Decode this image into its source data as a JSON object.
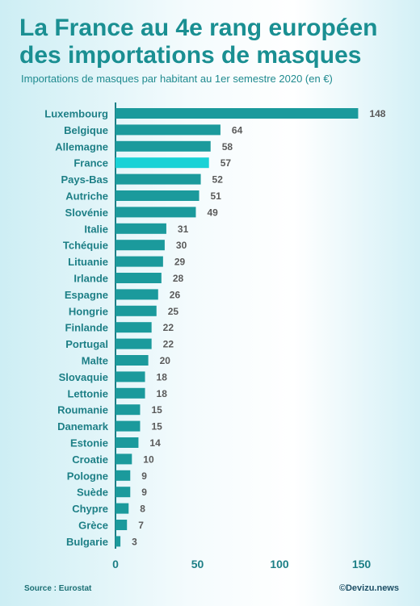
{
  "header": {
    "title": "La France au 4e rang européen des importations de masques",
    "subtitle": "Importations de masques par habitant au 1er semestre 2020 (en €)"
  },
  "footer": {
    "source": "Source : Eurostat",
    "credit": "©Devizu.news"
  },
  "colors": {
    "bar": "#1b9a9c",
    "highlight": "#19d2d6"
  },
  "chart_data": {
    "type": "bar",
    "orientation": "horizontal",
    "categories": [
      "Luxembourg",
      "Belgique",
      "Allemagne",
      "France",
      "Pays-Bas",
      "Autriche",
      "Slovénie",
      "Italie",
      "Tchéquie",
      "Lituanie",
      "Irlande",
      "Espagne",
      "Hongrie",
      "Finlande",
      "Portugal",
      "Malte",
      "Slovaquie",
      "Lettonie",
      "Roumanie",
      "Danemark",
      "Estonie",
      "Croatie",
      "Pologne",
      "Suède",
      "Chypre",
      "Grèce",
      "Bulgarie"
    ],
    "values": [
      148,
      64,
      58,
      57,
      52,
      51,
      49,
      31,
      30,
      29,
      28,
      26,
      25,
      22,
      22,
      20,
      18,
      18,
      15,
      15,
      14,
      10,
      9,
      9,
      8,
      7,
      3
    ],
    "highlight": "France",
    "xlim": [
      0,
      150
    ],
    "xticks": [
      0,
      50,
      100,
      150
    ],
    "xlabel": "",
    "ylabel": "",
    "grid": false,
    "legend": "none"
  }
}
